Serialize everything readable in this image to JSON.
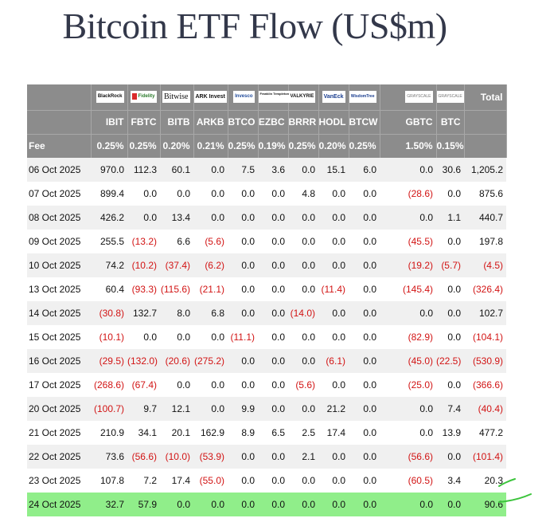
{
  "title": "Bitcoin ETF Flow (US$m)",
  "chart_data": {
    "type": "table",
    "title": "Bitcoin ETF Flow (US$m)",
    "issuer_logos": [
      "BlackRock",
      "Fidelity",
      "Bitwise",
      "ARK Invest",
      "Invesco",
      "Franklin Templeton",
      "VALKYRIE",
      "VanEck",
      "WisdomTree",
      "GRAYSCALE",
      "GRAYSCALE"
    ],
    "total_label": "Total",
    "columns": [
      "IBIT",
      "FBTC",
      "BITB",
      "ARKB",
      "BTCO",
      "EZBC",
      "BRRR",
      "HODL",
      "BTCW",
      "GBTC",
      "BTC"
    ],
    "fee_label": "Fee",
    "fees": [
      "0.25%",
      "0.25%",
      "0.20%",
      "0.21%",
      "0.25%",
      "0.19%",
      "0.25%",
      "0.20%",
      "0.25%",
      "1.50%",
      "0.15%"
    ],
    "rows": [
      {
        "date": "06 Oct 2025",
        "values": [
          "970.0",
          "112.3",
          "60.1",
          "0.0",
          "7.5",
          "3.6",
          "0.0",
          "15.1",
          "6.0",
          "0.0",
          "30.6"
        ],
        "total": "1,205.2"
      },
      {
        "date": "07 Oct 2025",
        "values": [
          "899.4",
          "0.0",
          "0.0",
          "0.0",
          "0.0",
          "0.0",
          "4.8",
          "0.0",
          "0.0",
          "(28.6)",
          "0.0"
        ],
        "total": "875.6"
      },
      {
        "date": "08 Oct 2025",
        "values": [
          "426.2",
          "0.0",
          "13.4",
          "0.0",
          "0.0",
          "0.0",
          "0.0",
          "0.0",
          "0.0",
          "0.0",
          "1.1"
        ],
        "total": "440.7"
      },
      {
        "date": "09 Oct 2025",
        "values": [
          "255.5",
          "(13.2)",
          "6.6",
          "(5.6)",
          "0.0",
          "0.0",
          "0.0",
          "0.0",
          "0.0",
          "(45.5)",
          "0.0"
        ],
        "total": "197.8"
      },
      {
        "date": "10 Oct 2025",
        "values": [
          "74.2",
          "(10.2)",
          "(37.4)",
          "(6.2)",
          "0.0",
          "0.0",
          "0.0",
          "0.0",
          "0.0",
          "(19.2)",
          "(5.7)"
        ],
        "total": "(4.5)"
      },
      {
        "date": "13 Oct 2025",
        "values": [
          "60.4",
          "(93.3)",
          "(115.6)",
          "(21.1)",
          "0.0",
          "0.0",
          "0.0",
          "(11.4)",
          "0.0",
          "(145.4)",
          "0.0"
        ],
        "total": "(326.4)"
      },
      {
        "date": "14 Oct 2025",
        "values": [
          "(30.8)",
          "132.7",
          "8.0",
          "6.8",
          "0.0",
          "0.0",
          "(14.0)",
          "0.0",
          "0.0",
          "0.0",
          "0.0"
        ],
        "total": "102.7"
      },
      {
        "date": "15 Oct 2025",
        "values": [
          "(10.1)",
          "0.0",
          "0.0",
          "0.0",
          "(11.1)",
          "0.0",
          "0.0",
          "0.0",
          "0.0",
          "(82.9)",
          "0.0"
        ],
        "total": "(104.1)"
      },
      {
        "date": "16 Oct 2025",
        "values": [
          "(29.5)",
          "(132.0)",
          "(20.6)",
          "(275.2)",
          "0.0",
          "0.0",
          "0.0",
          "(6.1)",
          "0.0",
          "(45.0)",
          "(22.5)"
        ],
        "total": "(530.9)"
      },
      {
        "date": "17 Oct 2025",
        "values": [
          "(268.6)",
          "(67.4)",
          "0.0",
          "0.0",
          "0.0",
          "0.0",
          "(5.6)",
          "0.0",
          "0.0",
          "(25.0)",
          "0.0"
        ],
        "total": "(366.6)"
      },
      {
        "date": "20 Oct 2025",
        "values": [
          "(100.7)",
          "9.7",
          "12.1",
          "0.0",
          "9.9",
          "0.0",
          "0.0",
          "21.2",
          "0.0",
          "0.0",
          "7.4"
        ],
        "total": "(40.4)"
      },
      {
        "date": "21 Oct 2025",
        "values": [
          "210.9",
          "34.1",
          "20.1",
          "162.9",
          "8.9",
          "6.5",
          "2.5",
          "17.4",
          "0.0",
          "0.0",
          "13.9"
        ],
        "total": "477.2"
      },
      {
        "date": "22 Oct 2025",
        "values": [
          "73.6",
          "(56.6)",
          "(10.0)",
          "(53.9)",
          "0.0",
          "0.0",
          "2.1",
          "0.0",
          "0.0",
          "(56.6)",
          "0.0"
        ],
        "total": "(101.4)"
      },
      {
        "date": "23 Oct 2025",
        "values": [
          "107.8",
          "7.2",
          "17.4",
          "(55.0)",
          "0.0",
          "0.0",
          "0.0",
          "0.0",
          "0.0",
          "(60.5)",
          "3.4"
        ],
        "total": "20.3"
      },
      {
        "date": "24 Oct 2025",
        "values": [
          "32.7",
          "57.9",
          "0.0",
          "0.0",
          "0.0",
          "0.0",
          "0.0",
          "0.0",
          "0.0",
          "0.0",
          "0.0"
        ],
        "total": "90.6",
        "highlighted": true
      }
    ]
  },
  "colors": {
    "header_bg": "#8c8c8c",
    "negative": "#d21414",
    "highlight_row": "#90ee8a",
    "annotation_stroke": "#3cc43c"
  }
}
